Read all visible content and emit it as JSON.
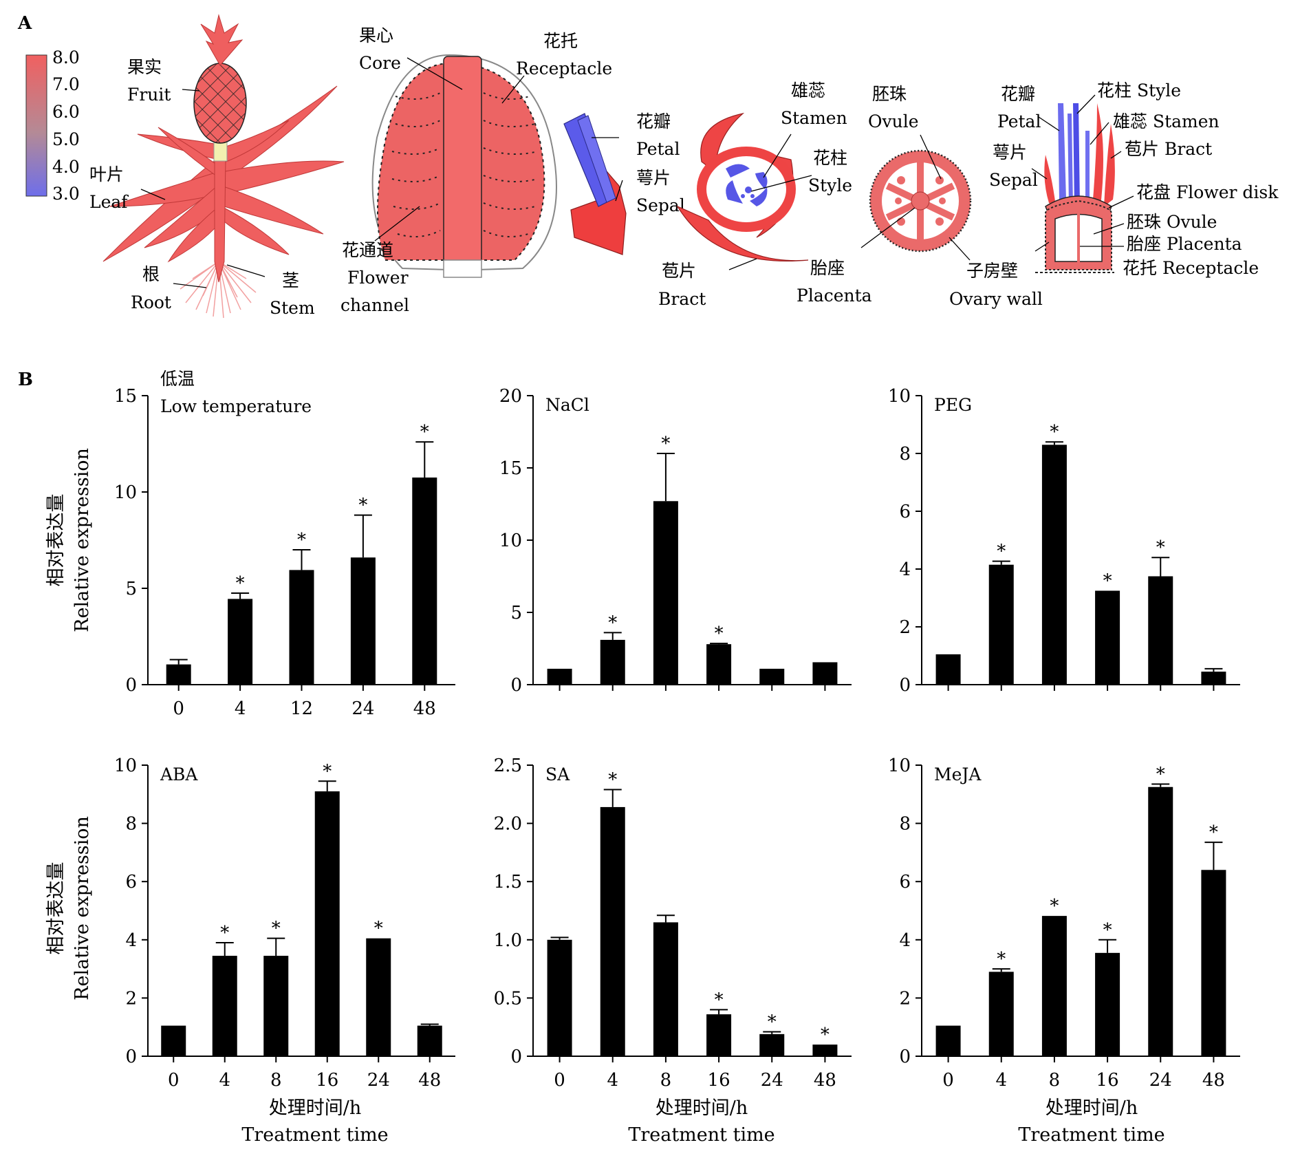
{
  "panel_a": {
    "letter": "A",
    "colorbar": {
      "ticks": [
        "8.0",
        "7.0",
        "6.0",
        "5.0",
        "4.0",
        "3.0"
      ],
      "colors": [
        "#f06060",
        "#b48a96",
        "#6e6eea"
      ]
    },
    "labels": {
      "fruit_zh": "果实",
      "fruit_en": "Fruit",
      "leaf_zh": "叶片",
      "leaf_en": "Leaf",
      "root_zh": "根",
      "root_en": "Root",
      "stem_zh": "茎",
      "stem_en": "Stem",
      "core_zh": "果心",
      "core_en": "Core",
      "receptacle_zh": "花托",
      "receptacle_en": "Receptacle",
      "flower_channel_zh": "花通道",
      "flower_channel_en1": "Flower",
      "flower_channel_en2": "channel",
      "petal_zh": "花瓣",
      "petal_en": "Petal",
      "sepal_zh": "萼片",
      "sepal_en": "Sepal",
      "bract_zh": "苞片",
      "bract_en": "Bract",
      "stamen_zh": "雄蕊",
      "stamen_en": "Stamen",
      "style_zh": "花柱",
      "style_en": "Style",
      "ovule_zh": "胚珠",
      "ovule_en": "Ovule",
      "placenta_zh": "胎座",
      "placenta_en": "Placenta",
      "ovary_wall_zh": "子房壁",
      "ovary_wall_en": "Ovary wall",
      "r_petal_zh": "花瓣",
      "r_petal_en": "Petal",
      "r_style": "花柱 Style",
      "r_stamen": "雄蕊 Stamen",
      "r_sepal_zh": "萼片",
      "r_sepal_en": "Sepal",
      "r_bract": "苞片 Bract",
      "r_disk": "花盘 Flower disk",
      "r_ovule": "胚珠 Ovule",
      "r_placenta": "胎座 Placenta",
      "r_receptacle": "花托 Receptacle"
    }
  },
  "panel_b": {
    "letter": "B",
    "ylabel_zh": "相对表达量",
    "ylabel_en": "Relative expression",
    "xlabel_zh": "处理时间/h",
    "xlabel_en": "Treatment time"
  },
  "chart_data": [
    {
      "type": "bar",
      "title": "低温 Low temperature",
      "title_lines": [
        "低温",
        "Low temperature"
      ],
      "categories": [
        "0",
        "4",
        "12",
        "24",
        "48"
      ],
      "values": [
        1.05,
        4.45,
        5.95,
        6.6,
        10.75
      ],
      "errors": [
        0.25,
        0.3,
        1.05,
        2.2,
        1.85
      ],
      "significant": [
        false,
        true,
        true,
        true,
        true
      ],
      "ylim": [
        0,
        15
      ],
      "yticks": [
        "0",
        "5",
        "10",
        "15"
      ],
      "xlabel": "",
      "ylabel": "相对表达量 Relative expression"
    },
    {
      "type": "bar",
      "title": "NaCl",
      "title_lines": [
        "NaCl"
      ],
      "categories": [
        "",
        "",
        "",
        "",
        "",
        ""
      ],
      "values": [
        1.1,
        3.1,
        12.7,
        2.8,
        1.1,
        1.55
      ],
      "errors": [
        0,
        0.5,
        3.3,
        0.05,
        0,
        0
      ],
      "significant": [
        false,
        true,
        true,
        true,
        false,
        false
      ],
      "ylim": [
        0,
        20
      ],
      "yticks": [
        "0",
        "5",
        "10",
        "15",
        "20"
      ],
      "xlabel": "",
      "ylabel": ""
    },
    {
      "type": "bar",
      "title": "PEG",
      "title_lines": [
        "PEG"
      ],
      "categories": [
        "",
        "",
        "",
        "",
        "",
        ""
      ],
      "values": [
        1.05,
        4.15,
        8.3,
        3.25,
        3.75,
        0.45
      ],
      "errors": [
        0,
        0.12,
        0.1,
        0,
        0.65,
        0.1
      ],
      "significant": [
        false,
        true,
        true,
        true,
        true,
        false
      ],
      "ylim": [
        0,
        10
      ],
      "yticks": [
        "0",
        "2",
        "4",
        "6",
        "8",
        "10"
      ],
      "xlabel": "",
      "ylabel": ""
    },
    {
      "type": "bar",
      "title": "ABA",
      "title_lines": [
        "ABA"
      ],
      "categories": [
        "0",
        "4",
        "8",
        "16",
        "24",
        "48"
      ],
      "values": [
        1.05,
        3.45,
        3.45,
        9.1,
        4.05,
        1.05
      ],
      "errors": [
        0,
        0.45,
        0.6,
        0.35,
        0,
        0.05
      ],
      "significant": [
        false,
        true,
        true,
        true,
        true,
        false
      ],
      "ylim": [
        0,
        10
      ],
      "yticks": [
        "0",
        "2",
        "4",
        "6",
        "8",
        "10"
      ],
      "xlabel": "处理时间/h Treatment time",
      "ylabel": "相对表达量 Relative expression"
    },
    {
      "type": "bar",
      "title": "SA",
      "title_lines": [
        "SA"
      ],
      "categories": [
        "0",
        "4",
        "8",
        "16",
        "24",
        "48"
      ],
      "values": [
        1.0,
        2.14,
        1.15,
        0.36,
        0.19,
        0.1
      ],
      "errors": [
        0.02,
        0.15,
        0.06,
        0.04,
        0.02,
        0
      ],
      "significant": [
        false,
        true,
        false,
        true,
        true,
        true
      ],
      "ylim": [
        0,
        2.5
      ],
      "yticks": [
        "0",
        "0.5",
        "1.0",
        "1.5",
        "2.0",
        "2.5"
      ],
      "xlabel": "处理时间/h Treatment time",
      "ylabel": ""
    },
    {
      "type": "bar",
      "title": "MeJA",
      "title_lines": [
        "MeJA"
      ],
      "categories": [
        "0",
        "4",
        "8",
        "16",
        "24",
        "48"
      ],
      "values": [
        1.05,
        2.9,
        4.82,
        3.55,
        9.25,
        6.4
      ],
      "errors": [
        0,
        0.1,
        0,
        0.45,
        0.1,
        0.95
      ],
      "significant": [
        false,
        true,
        true,
        true,
        true,
        true
      ],
      "ylim": [
        0,
        10
      ],
      "yticks": [
        "0",
        "2",
        "4",
        "6",
        "8",
        "10"
      ],
      "xlabel": "处理时间/h Treatment time",
      "ylabel": ""
    }
  ]
}
